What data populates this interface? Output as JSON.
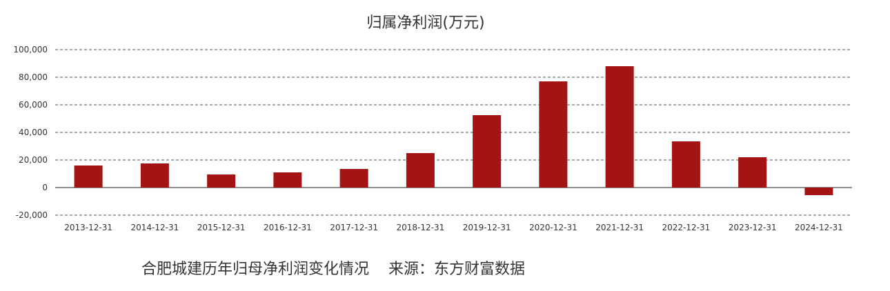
{
  "chart_data": {
    "type": "bar",
    "title": "归属净利润(万元)",
    "categories": [
      "2013-12-31",
      "2014-12-31",
      "2015-12-31",
      "2016-12-31",
      "2017-12-31",
      "2018-12-31",
      "2019-12-31",
      "2020-12-31",
      "2021-12-31",
      "2022-12-31",
      "2023-12-31",
      "2024-12-31"
    ],
    "values": [
      16000,
      17500,
      9500,
      11000,
      13500,
      25000,
      52500,
      77000,
      88000,
      33500,
      22000,
      -5500
    ],
    "yticks": [
      "100,000",
      "80,000",
      "60,000",
      "40,000",
      "20,000",
      "0",
      "-20,000"
    ],
    "ylim": [
      -20000,
      100000
    ],
    "bar_color": "#a31414",
    "grid": true
  },
  "caption": {
    "text": "合肥城建历年归母净利润变化情况",
    "source": "来源：东方财富数据"
  }
}
